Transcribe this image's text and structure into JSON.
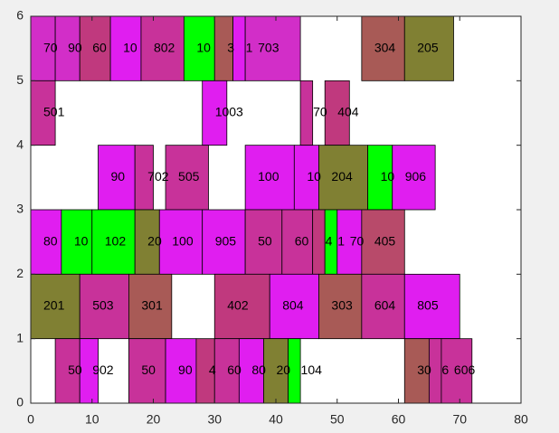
{
  "chart_data": {
    "type": "rectangles",
    "xlim": [
      0,
      80
    ],
    "ylim": [
      0,
      6
    ],
    "xticks": [
      0,
      10,
      20,
      30,
      40,
      50,
      60,
      70,
      80
    ],
    "yticks": [
      0,
      1,
      2,
      3,
      4,
      5,
      6
    ],
    "boxes": [
      {
        "x": [
          0,
          4
        ],
        "y": [
          5,
          6
        ],
        "label": "70",
        "color": "#d22ec8"
      },
      {
        "x": [
          4,
          8
        ],
        "y": [
          5,
          6
        ],
        "label": "90",
        "color": "#d22ec8"
      },
      {
        "x": [
          8,
          13
        ],
        "y": [
          5,
          6
        ],
        "label": "60",
        "color": "#c0397e"
      },
      {
        "x": [
          13,
          18
        ],
        "y": [
          5,
          6
        ],
        "label": "10",
        "color": "#e01ef0"
      },
      {
        "x": [
          18,
          25
        ],
        "y": [
          5,
          6
        ],
        "label": "802",
        "color": "#c8329a"
      },
      {
        "x": [
          25,
          30
        ],
        "y": [
          5,
          6
        ],
        "label": "10",
        "color": "#00ff00"
      },
      {
        "x": [
          30,
          33
        ],
        "y": [
          5,
          6
        ],
        "label": "3",
        "color": "#a85a56"
      },
      {
        "x": [
          33,
          35
        ],
        "y": [
          5,
          6
        ],
        "label": "1",
        "color": "#e01ef0"
      },
      {
        "x": [
          35,
          44
        ],
        "y": [
          5,
          6
        ],
        "label": "703",
        "color": "#d22ec8"
      },
      {
        "x": [
          54,
          61
        ],
        "y": [
          5,
          6
        ],
        "label": "304",
        "color": "#a85a56"
      },
      {
        "x": [
          61,
          69
        ],
        "y": [
          5,
          6
        ],
        "label": "205",
        "color": "#808033"
      },
      {
        "x": [
          0,
          4
        ],
        "y": [
          4,
          5
        ],
        "label": "501",
        "color": "#c8329a"
      },
      {
        "x": [
          28,
          32
        ],
        "y": [
          4,
          5
        ],
        "label": "1003",
        "color": "#e01ef0"
      },
      {
        "x": [
          44,
          46
        ],
        "y": [
          4,
          5
        ],
        "label": "70",
        "color": "#c8329a"
      },
      {
        "x": [
          48,
          52
        ],
        "y": [
          4,
          5
        ],
        "label": "404",
        "color": "#c0397e"
      },
      {
        "x": [
          11,
          17
        ],
        "y": [
          3,
          4
        ],
        "label": "90",
        "color": "#e01ef0"
      },
      {
        "x": [
          17,
          20
        ],
        "y": [
          3,
          4
        ],
        "label": "702",
        "color": "#c8329a"
      },
      {
        "x": [
          22,
          29
        ],
        "y": [
          3,
          4
        ],
        "label": "505",
        "color": "#c8329a"
      },
      {
        "x": [
          35,
          43
        ],
        "y": [
          3,
          4
        ],
        "label": "100",
        "color": "#e01ef0"
      },
      {
        "x": [
          43,
          47
        ],
        "y": [
          3,
          4
        ],
        "label": "10",
        "color": "#e01ef0"
      },
      {
        "x": [
          47,
          55
        ],
        "y": [
          3,
          4
        ],
        "label": "204",
        "color": "#808033"
      },
      {
        "x": [
          55,
          59
        ],
        "y": [
          3,
          4
        ],
        "label": "10",
        "color": "#00ff00"
      },
      {
        "x": [
          59,
          66
        ],
        "y": [
          3,
          4
        ],
        "label": "906",
        "color": "#e01ef0"
      },
      {
        "x": [
          0,
          5
        ],
        "y": [
          2,
          3
        ],
        "label": "80",
        "color": "#e01ef0"
      },
      {
        "x": [
          5,
          10
        ],
        "y": [
          2,
          3
        ],
        "label": "10",
        "color": "#00ff00"
      },
      {
        "x": [
          10,
          17
        ],
        "y": [
          2,
          3
        ],
        "label": "102",
        "color": "#00ff00"
      },
      {
        "x": [
          17,
          21
        ],
        "y": [
          2,
          3
        ],
        "label": "20",
        "color": "#808033"
      },
      {
        "x": [
          21,
          28
        ],
        "y": [
          2,
          3
        ],
        "label": "100",
        "color": "#e01ef0"
      },
      {
        "x": [
          28,
          35
        ],
        "y": [
          2,
          3
        ],
        "label": "905",
        "color": "#e01ef0"
      },
      {
        "x": [
          35,
          41
        ],
        "y": [
          2,
          3
        ],
        "label": "50",
        "color": "#c8329a"
      },
      {
        "x": [
          41,
          46
        ],
        "y": [
          2,
          3
        ],
        "label": "60",
        "color": "#c8329a"
      },
      {
        "x": [
          46,
          48
        ],
        "y": [
          2,
          3
        ],
        "label": "4",
        "color": "#c0397e"
      },
      {
        "x": [
          48,
          50
        ],
        "y": [
          2,
          3
        ],
        "label": "1",
        "color": "#00ff00"
      },
      {
        "x": [
          50,
          54
        ],
        "y": [
          2,
          3
        ],
        "label": "70",
        "color": "#e01ef0"
      },
      {
        "x": [
          54,
          61
        ],
        "y": [
          2,
          3
        ],
        "label": "405",
        "color": "#b84a6a"
      },
      {
        "x": [
          0,
          8
        ],
        "y": [
          1,
          2
        ],
        "label": "201",
        "color": "#808033"
      },
      {
        "x": [
          8,
          16
        ],
        "y": [
          1,
          2
        ],
        "label": "503",
        "color": "#c8329a"
      },
      {
        "x": [
          16,
          23
        ],
        "y": [
          1,
          2
        ],
        "label": "301",
        "color": "#a85a56"
      },
      {
        "x": [
          30,
          39
        ],
        "y": [
          1,
          2
        ],
        "label": "402",
        "color": "#c0397e"
      },
      {
        "x": [
          39,
          47
        ],
        "y": [
          1,
          2
        ],
        "label": "804",
        "color": "#e01ef0"
      },
      {
        "x": [
          47,
          54
        ],
        "y": [
          1,
          2
        ],
        "label": "303",
        "color": "#a85a56"
      },
      {
        "x": [
          54,
          61
        ],
        "y": [
          1,
          2
        ],
        "label": "604",
        "color": "#c8329a"
      },
      {
        "x": [
          61,
          70
        ],
        "y": [
          1,
          2
        ],
        "label": "805",
        "color": "#e01ef0"
      },
      {
        "x": [
          4,
          8
        ],
        "y": [
          0,
          1
        ],
        "label": "50",
        "color": "#c8329a"
      },
      {
        "x": [
          8,
          11
        ],
        "y": [
          0,
          1
        ],
        "label": "902",
        "color": "#e01ef0"
      },
      {
        "x": [
          16,
          22
        ],
        "y": [
          0,
          1
        ],
        "label": "50",
        "color": "#c8329a"
      },
      {
        "x": [
          22,
          27
        ],
        "y": [
          0,
          1
        ],
        "label": "90",
        "color": "#e01ef0"
      },
      {
        "x": [
          27,
          30
        ],
        "y": [
          0,
          1
        ],
        "label": "4",
        "color": "#c0397e"
      },
      {
        "x": [
          30,
          34
        ],
        "y": [
          0,
          1
        ],
        "label": "60",
        "color": "#c8329a"
      },
      {
        "x": [
          34,
          38
        ],
        "y": [
          0,
          1
        ],
        "label": "80",
        "color": "#e01ef0"
      },
      {
        "x": [
          38,
          42
        ],
        "y": [
          0,
          1
        ],
        "label": "20",
        "color": "#808033"
      },
      {
        "x": [
          42,
          44
        ],
        "y": [
          0,
          1
        ],
        "label": "104",
        "color": "#00ff00"
      },
      {
        "x": [
          61,
          65
        ],
        "y": [
          0,
          1
        ],
        "label": "30",
        "color": "#a85a56"
      },
      {
        "x": [
          65,
          67
        ],
        "y": [
          0,
          1
        ],
        "label": "6",
        "color": "#c8329a"
      },
      {
        "x": [
          67,
          72
        ],
        "y": [
          0,
          1
        ],
        "label": "606",
        "color": "#c8329a"
      }
    ]
  }
}
